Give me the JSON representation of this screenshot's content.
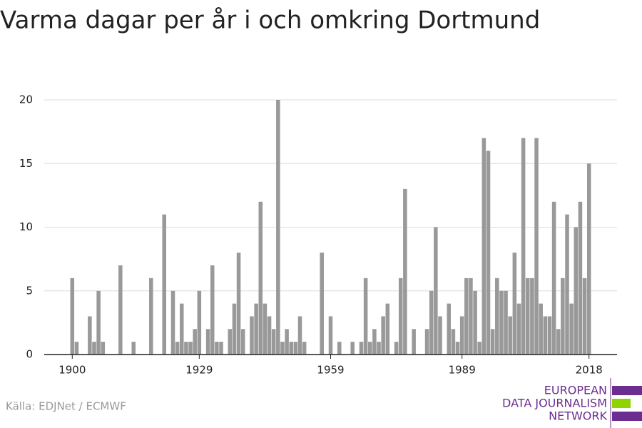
{
  "chart_data": {
    "type": "bar",
    "title": "Varma dagar per år i och omkring Dortmund",
    "source": "Källa: EDJNet / ECMWF",
    "logo": [
      "EUROPEAN",
      "DATA JOURNALISM",
      "NETWORK"
    ],
    "color": "#999999",
    "grid": true,
    "x": [
      1900,
      1901,
      1902,
      1903,
      1904,
      1905,
      1906,
      1907,
      1908,
      1909,
      1910,
      1911,
      1912,
      1913,
      1914,
      1915,
      1916,
      1917,
      1918,
      1919,
      1920,
      1921,
      1922,
      1923,
      1924,
      1925,
      1926,
      1927,
      1928,
      1929,
      1930,
      1931,
      1932,
      1933,
      1934,
      1935,
      1936,
      1937,
      1938,
      1939,
      1940,
      1941,
      1942,
      1943,
      1944,
      1945,
      1946,
      1947,
      1948,
      1949,
      1950,
      1951,
      1952,
      1953,
      1954,
      1955,
      1956,
      1957,
      1958,
      1959,
      1960,
      1961,
      1962,
      1963,
      1964,
      1965,
      1966,
      1967,
      1968,
      1969,
      1970,
      1971,
      1972,
      1973,
      1974,
      1975,
      1976,
      1977,
      1978,
      1979,
      1980,
      1981,
      1982,
      1983,
      1984,
      1985,
      1986,
      1987,
      1988,
      1989,
      1990,
      1991,
      1992,
      1993,
      1994,
      1995,
      1996,
      1997,
      1998,
      1999,
      2000,
      2001,
      2002,
      2003,
      2004,
      2005,
      2006,
      2007,
      2008,
      2009,
      2010,
      2011,
      2012,
      2013,
      2014,
      2015,
      2016,
      2017,
      2018
    ],
    "values": [
      6,
      1,
      0,
      0,
      3,
      1,
      5,
      1,
      0,
      0,
      0,
      7,
      0,
      0,
      1,
      0,
      0,
      0,
      6,
      0,
      0,
      11,
      0,
      5,
      1,
      4,
      1,
      1,
      2,
      5,
      0,
      2,
      7,
      1,
      1,
      0,
      2,
      4,
      8,
      2,
      0,
      3,
      4,
      12,
      4,
      3,
      2,
      20,
      1,
      2,
      1,
      1,
      3,
      1,
      0,
      0,
      0,
      8,
      0,
      3,
      0,
      1,
      0,
      0,
      1,
      0,
      1,
      6,
      1,
      2,
      1,
      3,
      4,
      0,
      1,
      6,
      13,
      0,
      2,
      0,
      0,
      2,
      5,
      10,
      3,
      0,
      4,
      2,
      1,
      3,
      6,
      6,
      5,
      1,
      17,
      16,
      2,
      6,
      5,
      5,
      3,
      8,
      4,
      17,
      6,
      6,
      17,
      4,
      3,
      3,
      12,
      2,
      6,
      11,
      4,
      10,
      12,
      6,
      15
    ],
    "xlim": [
      1893.6,
      2024.4
    ],
    "xticks": [
      1900,
      1929,
      1959,
      1989,
      2018
    ],
    "ylim": [
      0,
      20
    ],
    "yticks": [
      0,
      5,
      10,
      15,
      20
    ]
  }
}
